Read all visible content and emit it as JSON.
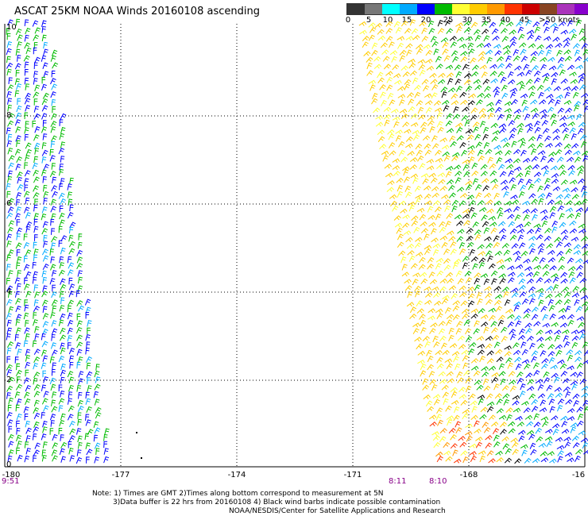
{
  "title": "ASCAT 25KM NOAA Winds 20160108 ascending",
  "legend": {
    "swatches": [
      {
        "color": "#333333"
      },
      {
        "color": "#777777"
      },
      {
        "color": "#00ffff"
      },
      {
        "color": "#00aaff"
      },
      {
        "color": "#0000ff"
      },
      {
        "color": "#00bb00"
      },
      {
        "color": "#ffff33"
      },
      {
        "color": "#ffcc00"
      },
      {
        "color": "#ff9900"
      },
      {
        "color": "#ff3300"
      },
      {
        "color": "#cc0000"
      },
      {
        "color": "#884422"
      },
      {
        "color": "#aa33bb"
      },
      {
        "color": "#8800cc"
      }
    ],
    "labels": [
      "0",
      "5",
      "10",
      "15",
      "20",
      "25",
      "30",
      "35",
      "40",
      "45",
      ">50 knots"
    ]
  },
  "map": {
    "y_ticks": [
      "10",
      "8",
      "6",
      "4",
      "2",
      "0"
    ],
    "x_ticks": [
      "-180",
      "-177",
      "-174",
      "-171",
      "-168",
      "-16"
    ],
    "time_labels": [
      "9:51",
      "8:11",
      "8:10"
    ]
  },
  "notes": {
    "line1": "Note: 1) Times are GMT 2)Times along bottom correspond to measurement at 5N",
    "line2": "3)Data buffer is 22 hrs from 20160108 4) Black wind barbs indicate possible contamination",
    "line3": "NOAA/NESDIS/Center for Satellite Applications and Research"
  }
}
